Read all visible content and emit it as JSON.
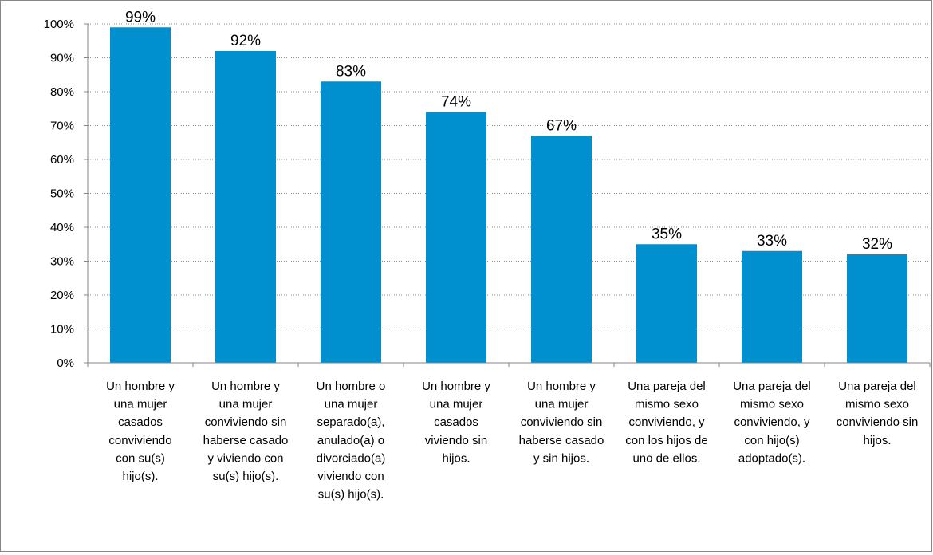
{
  "chart_data": {
    "type": "bar",
    "title": "",
    "xlabel": "",
    "ylabel": "",
    "ylim": [
      0,
      100
    ],
    "y_tick_labels": [
      "0%",
      "10%",
      "20%",
      "30%",
      "40%",
      "50%",
      "60%",
      "70%",
      "80%",
      "90%",
      "100%"
    ],
    "grid": true,
    "legend": "none",
    "bar_color": "#0090cf",
    "categories": [
      "Un hombre y una mujer casados conviviendo con su(s) hijo(s).",
      "Un hombre y una mujer conviviendo sin haberse casado y viviendo con su(s) hijo(s).",
      "Un hombre o una mujer separado(a), anulado(a) o divorciado(a) viviendo con su(s) hijo(s).",
      "Un hombre y una mujer casados viviendo sin hijos.",
      "Un hombre y una mujer conviviendo sin haberse casado y sin hijos.",
      "Una pareja del mismo sexo conviviendo, y con los hijos de uno de ellos.",
      "Una pareja del mismo sexo conviviendo, y con hijo(s) adoptado(s).",
      "Una pareja del mismo sexo conviviendo sin hijos."
    ],
    "category_lines": [
      [
        "Un hombre y",
        "una mujer",
        "casados",
        "conviviendo",
        "con su(s)",
        "hijo(s)."
      ],
      [
        "Un hombre y",
        "una mujer",
        "conviviendo sin",
        "haberse casado",
        "y viviendo con",
        "su(s) hijo(s)."
      ],
      [
        "Un hombre o",
        "una mujer",
        "separado(a),",
        "anulado(a) o",
        "divorciado(a)",
        "viviendo con",
        "su(s) hijo(s)."
      ],
      [
        "Un hombre y",
        "una mujer",
        "casados",
        "viviendo sin",
        "hijos."
      ],
      [
        "Un hombre y",
        "una mujer",
        "conviviendo sin",
        "haberse casado",
        "y sin hijos."
      ],
      [
        "Una pareja del",
        "mismo sexo",
        "conviviendo, y",
        "con los hijos de",
        "uno de ellos."
      ],
      [
        "Una pareja del",
        "mismo sexo",
        "conviviendo, y",
        "con hijo(s)",
        "adoptado(s)."
      ],
      [
        "Una pareja del",
        "mismo sexo",
        "conviviendo sin",
        "hijos."
      ]
    ],
    "values": [
      99,
      92,
      83,
      74,
      67,
      35,
      33,
      32
    ],
    "data_labels": [
      "99%",
      "92%",
      "83%",
      "74%",
      "67%",
      "35%",
      "33%",
      "32%"
    ]
  }
}
